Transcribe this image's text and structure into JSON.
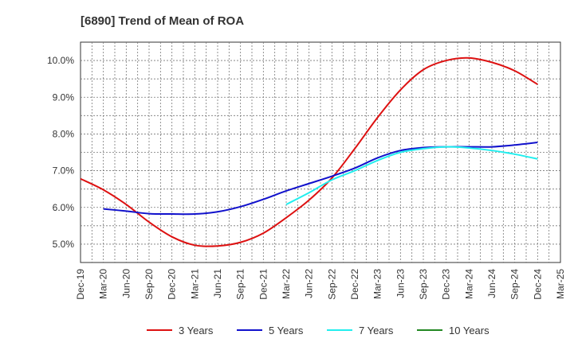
{
  "chart_data": {
    "type": "line",
    "title": "[6890]  Trend of Mean of ROA",
    "xlabel": "",
    "ylabel": "",
    "ylim": [
      4.5,
      10.5
    ],
    "yticks": [
      5.0,
      6.0,
      7.0,
      8.0,
      9.0,
      10.0
    ],
    "ytick_labels": [
      "5.0%",
      "6.0%",
      "7.0%",
      "8.0%",
      "9.0%",
      "10.0%"
    ],
    "categories": [
      "Dec-19",
      "Mar-20",
      "Jun-20",
      "Sep-20",
      "Dec-20",
      "Mar-21",
      "Jun-21",
      "Sep-21",
      "Dec-21",
      "Mar-22",
      "Jun-22",
      "Sep-22",
      "Dec-22",
      "Mar-23",
      "Jun-23",
      "Sep-23",
      "Dec-23",
      "Mar-24",
      "Jun-24",
      "Sep-24",
      "Dec-24",
      "Mar-25"
    ],
    "grid": true,
    "legend_position": "bottom",
    "series": [
      {
        "name": "3 Years",
        "color": "#dd1111",
        "values": [
          6.78,
          6.48,
          6.08,
          5.6,
          5.2,
          4.97,
          4.95,
          5.05,
          5.3,
          5.72,
          6.2,
          6.8,
          7.6,
          8.45,
          9.2,
          9.75,
          10.0,
          10.07,
          9.95,
          9.72,
          9.35,
          null
        ]
      },
      {
        "name": "5 Years",
        "color": "#1111cc",
        "values": [
          null,
          5.96,
          5.9,
          5.83,
          5.82,
          5.82,
          5.88,
          6.02,
          6.22,
          6.45,
          6.65,
          6.85,
          7.07,
          7.35,
          7.55,
          7.63,
          7.65,
          7.65,
          7.65,
          7.7,
          7.77,
          null
        ]
      },
      {
        "name": "7 Years",
        "color": "#22eeee",
        "values": [
          null,
          null,
          null,
          null,
          null,
          null,
          null,
          null,
          null,
          6.08,
          6.4,
          6.75,
          7.0,
          7.28,
          7.5,
          7.6,
          7.65,
          7.62,
          7.55,
          7.45,
          7.32,
          null
        ]
      },
      {
        "name": "10 Years",
        "color": "#228822",
        "values": [
          null,
          null,
          null,
          null,
          null,
          null,
          null,
          null,
          null,
          null,
          null,
          null,
          null,
          null,
          null,
          null,
          null,
          null,
          null,
          null,
          null,
          null
        ]
      }
    ]
  }
}
